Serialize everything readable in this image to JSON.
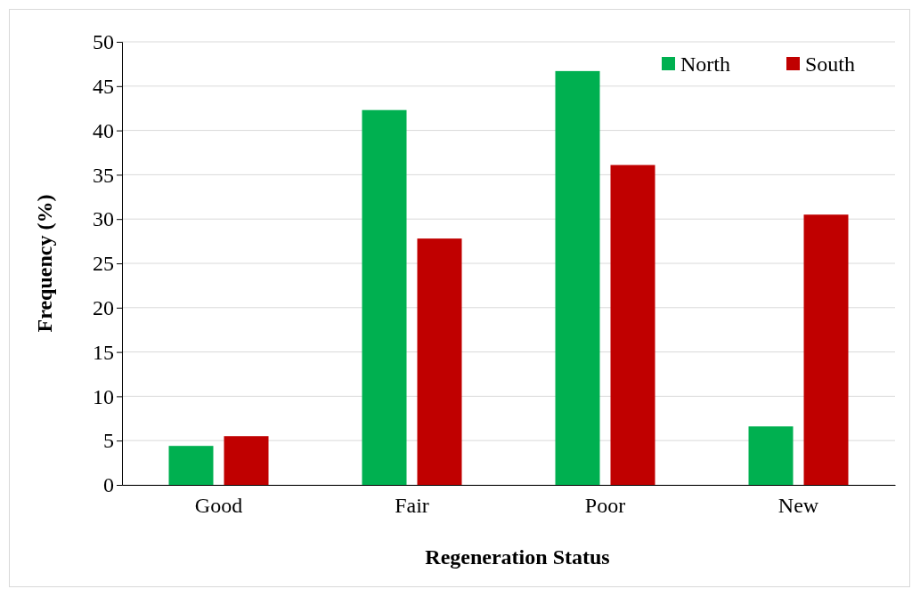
{
  "chart_data": {
    "type": "bar",
    "xlabel": "Regeneration Status",
    "ylabel": "Frequency (%)",
    "categories": [
      "Good",
      "Fair",
      "Poor",
      "New"
    ],
    "series": [
      {
        "name": "North",
        "color": "#00b050",
        "values": [
          4.4,
          42.3,
          46.7,
          6.6
        ]
      },
      {
        "name": "South",
        "color": "#c00000",
        "values": [
          5.5,
          27.8,
          36.1,
          30.5
        ]
      }
    ],
    "ylim": [
      0,
      50
    ],
    "yticks": [
      0,
      5,
      10,
      15,
      20,
      25,
      30,
      35,
      40,
      45,
      50
    ],
    "grid": "y",
    "legend": "top right"
  }
}
